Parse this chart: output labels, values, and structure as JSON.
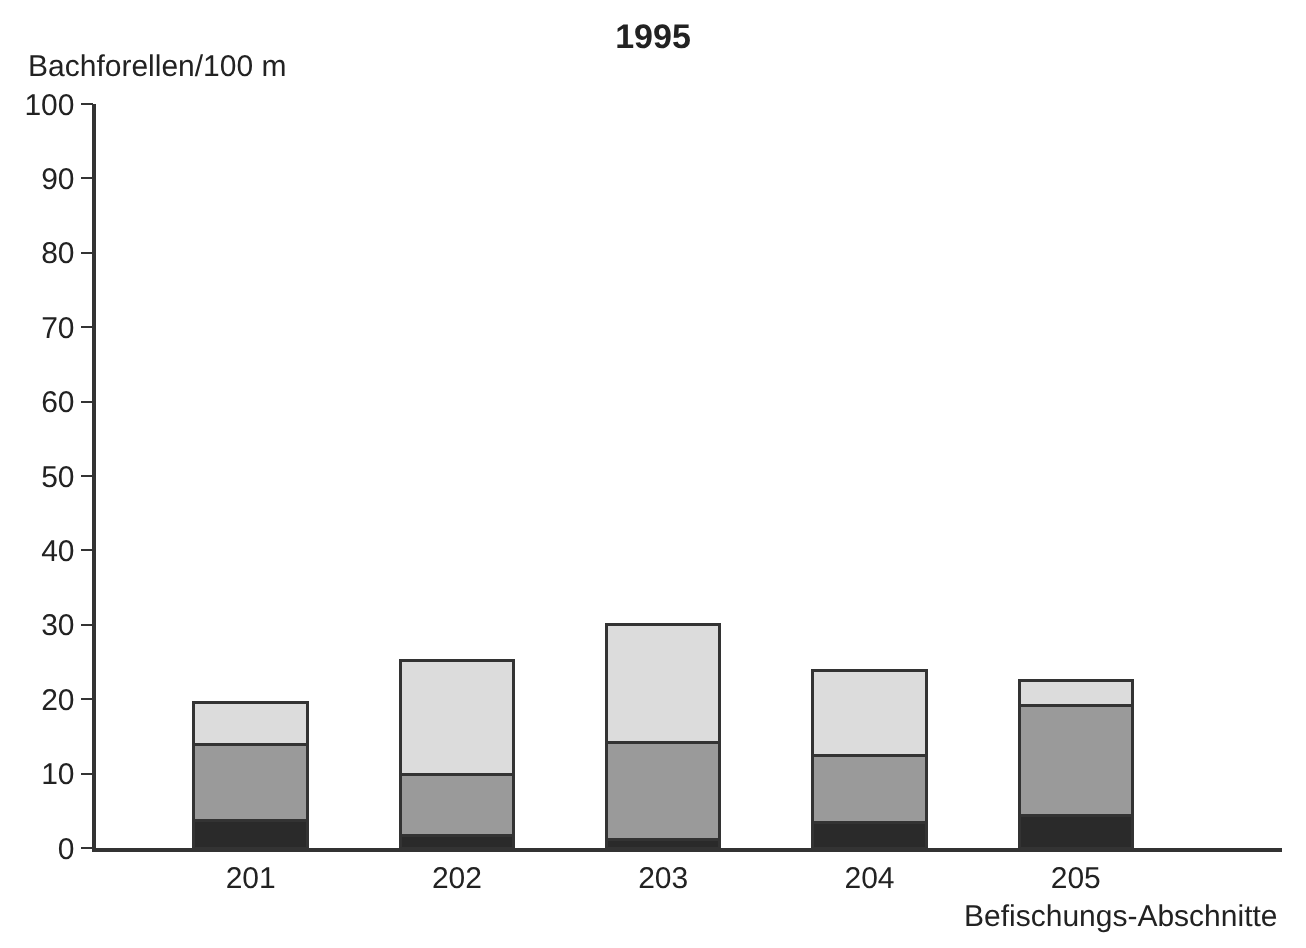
{
  "chart_data": {
    "type": "bar",
    "title": "1995",
    "ylabel": "Bachforellen/100 m",
    "xlabel": "Befischungs-Abschnitte",
    "categories": [
      "201",
      "202",
      "203",
      "204",
      "205"
    ],
    "stacked": true,
    "series": [
      {
        "color": "#2a2a2a",
        "values": [
          3.7,
          1.7,
          1.1,
          3.4,
          4.4
        ]
      },
      {
        "color": "#9a9a9a",
        "values": [
          10.2,
          8.2,
          13.1,
          9.1,
          14.8
        ]
      },
      {
        "color": "#dcdcdc",
        "values": [
          5.6,
          15.3,
          15.8,
          11.4,
          3.3
        ]
      }
    ],
    "ylim": [
      0,
      100
    ],
    "yticks": [
      0,
      10,
      20,
      30,
      40,
      50,
      60,
      70,
      80,
      90,
      100
    ]
  }
}
